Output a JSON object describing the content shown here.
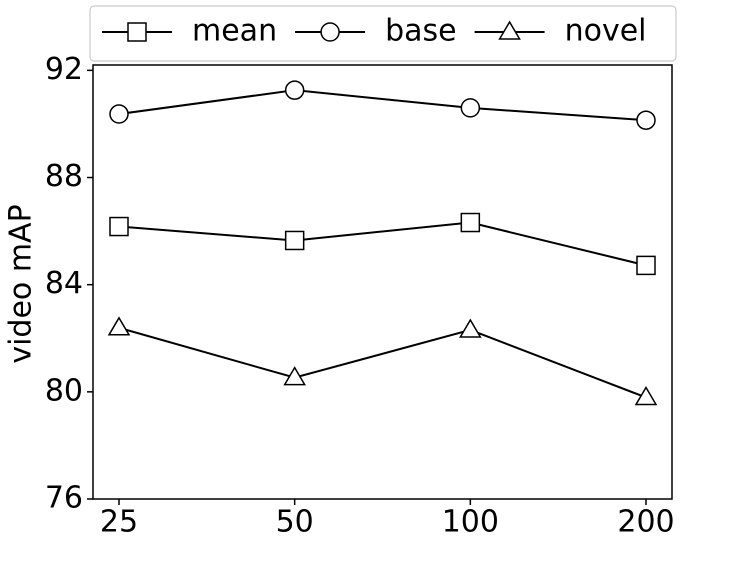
{
  "chart_data": {
    "type": "line",
    "y_label": "video mAP",
    "categories": [
      "25",
      "50",
      "100",
      "200"
    ],
    "series": [
      {
        "name": "mean",
        "color": "#000000",
        "marker": "square",
        "values": [
          86.17,
          85.65,
          86.32,
          84.72
        ]
      },
      {
        "name": "base",
        "color": "#000000",
        "marker": "circle",
        "values": [
          90.37,
          91.26,
          90.6,
          90.14
        ]
      },
      {
        "name": "novel",
        "color": "#000000",
        "marker": "triangle",
        "values": [
          82.39,
          80.53,
          82.31,
          79.79
        ]
      }
    ],
    "ylim": [
      76,
      92.2
    ],
    "yticks": [
      76,
      80,
      84,
      88,
      92
    ],
    "grid": false,
    "legend": "top"
  }
}
